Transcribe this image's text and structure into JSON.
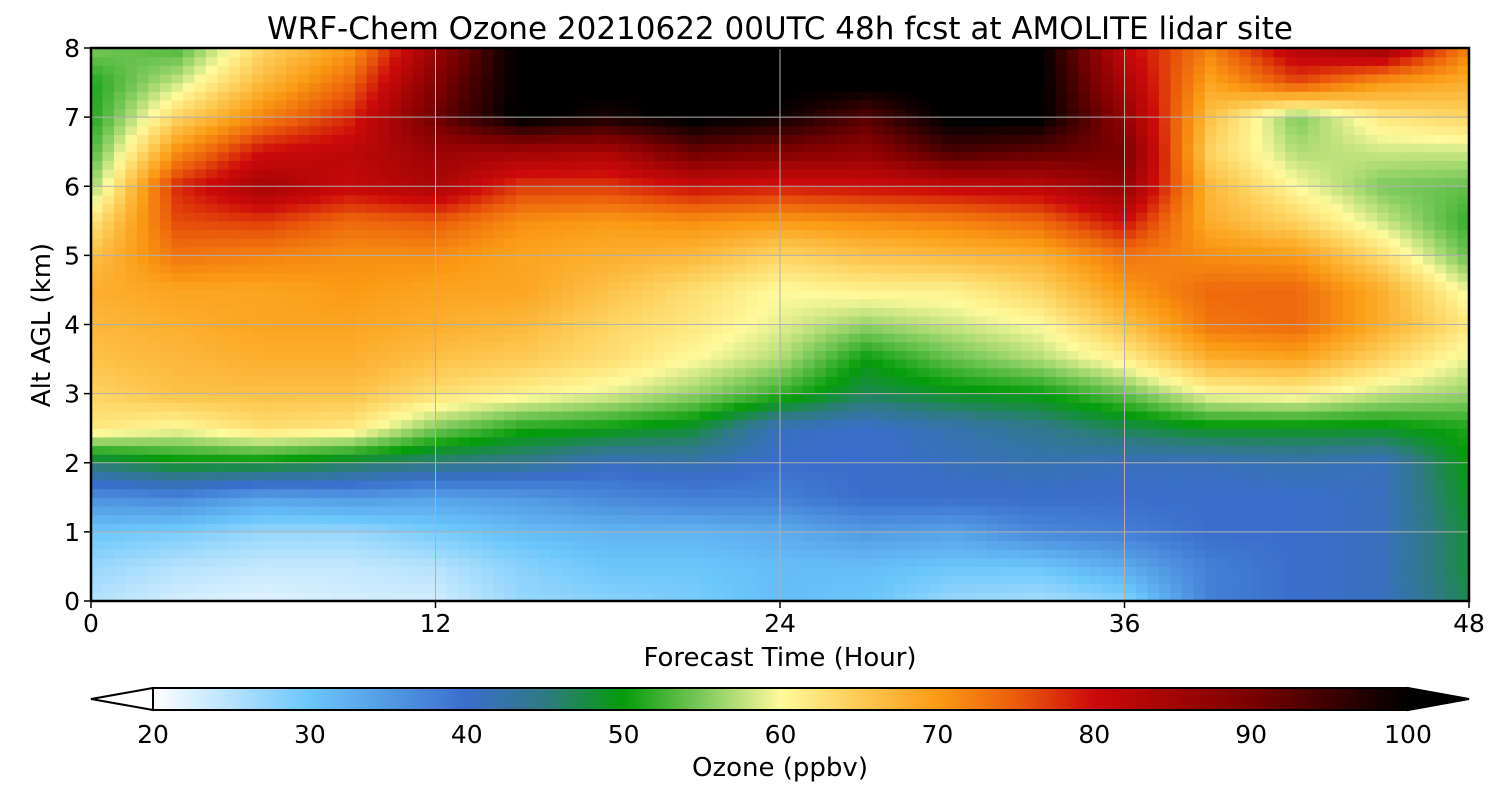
{
  "title": "WRF-Chem Ozone  20210622 00UTC 48h fcst at AMOLITE lidar site",
  "chart_data": {
    "type": "heatmap",
    "title": "WRF-Chem Ozone  20210622 00UTC 48h fcst at AMOLITE lidar site",
    "xlabel": "Forecast Time (Hour)",
    "ylabel": "Alt AGL (km)",
    "xlim": [
      0,
      48
    ],
    "ylim": [
      0,
      8
    ],
    "xticks": [
      0,
      12,
      24,
      36,
      48
    ],
    "yticks": [
      0,
      1,
      2,
      3,
      4,
      5,
      6,
      7,
      8
    ],
    "grid": true,
    "x": [
      0,
      3,
      6,
      9,
      12,
      15,
      18,
      21,
      24,
      27,
      30,
      33,
      36,
      39,
      42,
      45,
      48
    ],
    "y": [
      0,
      0.5,
      1,
      1.5,
      2,
      2.5,
      3,
      3.5,
      4,
      4.5,
      5,
      5.5,
      6,
      6.5,
      7,
      7.5,
      8
    ],
    "z": [
      [
        25,
        23,
        22,
        23,
        23,
        27,
        28,
        29,
        31,
        30,
        27,
        26,
        28,
        38,
        40,
        41,
        47
      ],
      [
        27,
        25,
        24,
        24,
        25,
        28,
        30,
        30,
        31,
        31,
        30,
        30,
        33,
        38,
        40,
        41,
        48
      ],
      [
        30,
        29,
        27,
        27,
        29,
        31,
        32,
        32,
        33,
        35,
        34,
        37,
        38,
        40,
        40,
        41,
        48
      ],
      [
        36,
        37,
        34,
        35,
        34,
        35,
        37,
        38,
        38,
        40,
        40,
        40,
        40,
        40,
        40,
        41,
        49
      ],
      [
        46,
        49,
        49,
        47,
        45,
        44,
        41,
        42,
        40,
        40,
        41,
        42,
        41,
        41,
        42,
        41,
        50
      ],
      [
        62,
        60,
        63,
        62,
        55,
        51,
        50,
        48,
        41,
        40,
        42,
        44,
        47,
        49,
        49,
        49,
        51
      ],
      [
        64,
        66,
        66,
        66,
        63,
        61,
        59,
        56,
        52,
        47,
        49,
        50,
        54,
        60,
        61,
        58,
        56
      ],
      [
        66,
        67,
        68,
        68,
        66,
        65,
        63,
        60,
        57,
        50,
        54,
        57,
        61,
        68,
        69,
        64,
        59
      ],
      [
        67,
        68,
        69,
        69,
        68,
        67,
        64,
        62,
        59,
        56,
        58,
        60,
        66,
        73,
        74,
        68,
        62
      ],
      [
        68,
        69,
        69,
        70,
        69,
        69,
        66,
        63,
        60,
        61,
        61,
        64,
        70,
        74,
        74,
        68,
        59
      ],
      [
        66,
        73,
        72,
        71,
        71,
        69,
        68,
        67,
        64,
        66,
        67,
        68,
        73,
        71,
        70,
        63,
        54
      ],
      [
        62,
        76,
        77,
        74,
        75,
        71,
        70,
        71,
        70,
        71,
        72,
        74,
        80,
        68,
        64,
        58,
        52
      ],
      [
        56,
        78,
        85,
        81,
        84,
        77,
        77,
        80,
        79,
        80,
        81,
        82,
        87,
        67,
        60,
        55,
        54
      ],
      [
        53,
        71,
        80,
        82,
        86,
        85,
        84,
        91,
        89,
        87,
        94,
        92,
        90,
        64,
        57,
        58,
        58
      ],
      [
        51,
        64,
        72,
        78,
        91,
        101,
        98,
        101,
        99,
        93,
        101,
        101,
        87,
        66,
        55,
        62,
        64
      ],
      [
        51,
        58,
        67,
        74,
        89,
        101,
        101,
        101,
        101,
        101,
        101,
        101,
        84,
        69,
        76,
        70,
        68
      ],
      [
        55,
        53,
        64,
        70,
        86,
        101,
        101,
        101,
        101,
        101,
        101,
        101,
        81,
        72,
        83,
        86,
        72
      ]
    ],
    "colorbar": {
      "label": "Ozone  (ppbv)",
      "min": 20,
      "max": 100,
      "ticks": [
        20,
        30,
        40,
        50,
        60,
        70,
        80,
        90,
        100
      ],
      "extend": "both",
      "colormap": [
        [
          20,
          "#ffffff"
        ],
        [
          30,
          "#6bc6fb"
        ],
        [
          40,
          "#3a6ecc"
        ],
        [
          45,
          "#2f7a82"
        ],
        [
          50,
          "#059c0a"
        ],
        [
          55,
          "#7cc95c"
        ],
        [
          60,
          "#fffa9c"
        ],
        [
          65,
          "#fdcb55"
        ],
        [
          70,
          "#fb9b14"
        ],
        [
          75,
          "#ea5c0b"
        ],
        [
          80,
          "#cc0a0a"
        ],
        [
          90,
          "#7a0000"
        ],
        [
          100,
          "#000000"
        ]
      ]
    }
  }
}
